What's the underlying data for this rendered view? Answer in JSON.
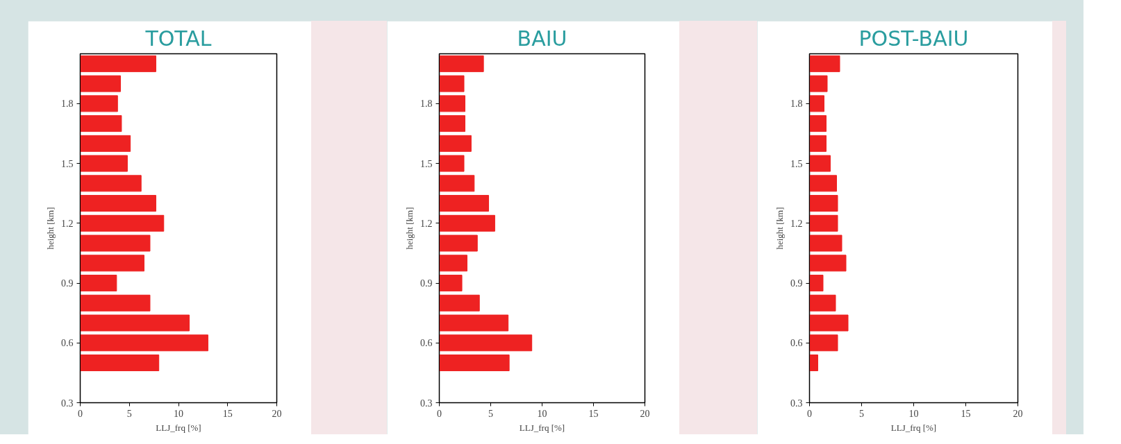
{
  "chart_data": [
    {
      "type": "bar",
      "orientation": "horizontal",
      "title": "TOTAL",
      "xlabel": "LLJ_frq [%]",
      "ylabel": "height [km]",
      "color": "#ee2222",
      "x": [
        0.5,
        0.6,
        0.7,
        0.8,
        0.9,
        1.0,
        1.1,
        1.2,
        1.3,
        1.4,
        1.5,
        1.6,
        1.7,
        1.8,
        1.9,
        2.0
      ],
      "values": [
        8.0,
        13.0,
        11.1,
        7.1,
        3.7,
        6.5,
        7.1,
        8.5,
        7.7,
        6.2,
        4.8,
        5.1,
        4.2,
        3.8,
        4.1,
        7.7
      ],
      "xlim": [
        0,
        20
      ],
      "xticks": [
        0,
        5,
        10,
        15,
        20
      ],
      "ylim": [
        0.3,
        2.05
      ],
      "yticks": [
        0.3,
        0.6,
        0.9,
        1.2,
        1.5,
        1.8
      ]
    },
    {
      "type": "bar",
      "orientation": "horizontal",
      "title": "BAIU",
      "xlabel": "LLJ_frq [%]",
      "ylabel": "height [km]",
      "color": "#ee2222",
      "x": [
        0.5,
        0.6,
        0.7,
        0.8,
        0.9,
        1.0,
        1.1,
        1.2,
        1.3,
        1.4,
        1.5,
        1.6,
        1.7,
        1.8,
        1.9,
        2.0
      ],
      "values": [
        6.8,
        9.0,
        6.7,
        3.9,
        2.2,
        2.7,
        3.7,
        5.4,
        4.8,
        3.4,
        2.4,
        3.1,
        2.5,
        2.5,
        2.4,
        4.3
      ],
      "xlim": [
        0,
        20
      ],
      "xticks": [
        0,
        5,
        10,
        15,
        20
      ],
      "ylim": [
        0.3,
        2.05
      ],
      "yticks": [
        0.3,
        0.6,
        0.9,
        1.2,
        1.5,
        1.8
      ]
    },
    {
      "type": "bar",
      "orientation": "horizontal",
      "title": "POST-BAIU",
      "xlabel": "LLJ_frq [%]",
      "ylabel": "height [km]",
      "color": "#ee2222",
      "x": [
        0.5,
        0.6,
        0.7,
        0.8,
        0.9,
        1.0,
        1.1,
        1.2,
        1.3,
        1.4,
        1.5,
        1.6,
        1.7,
        1.8,
        1.9,
        2.0
      ],
      "values": [
        0.8,
        2.7,
        3.7,
        2.5,
        1.3,
        3.5,
        3.1,
        2.7,
        2.7,
        2.6,
        2.0,
        1.6,
        1.6,
        1.4,
        1.7,
        2.9
      ],
      "xlim": [
        0,
        20
      ],
      "xticks": [
        0,
        5,
        10,
        15,
        20
      ],
      "ylim": [
        0.3,
        2.05
      ],
      "yticks": [
        0.3,
        0.6,
        0.9,
        1.2,
        1.5,
        1.8
      ]
    }
  ]
}
